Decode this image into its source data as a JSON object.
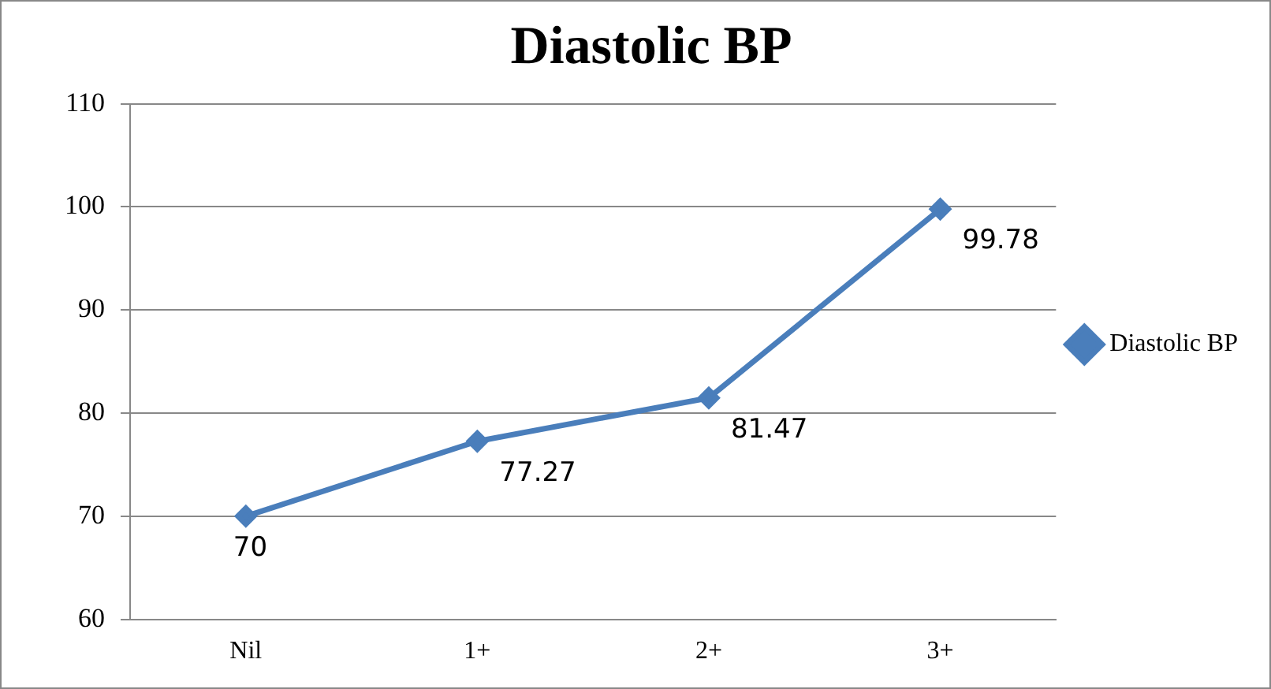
{
  "chart_data": {
    "type": "line",
    "title": "Diastolic BP",
    "categories": [
      "Nil",
      "1+",
      "2+",
      "3+"
    ],
    "series": [
      {
        "name": "Diastolic BP",
        "color": "#4a7ebb",
        "values": [
          70,
          77.27,
          81.47,
          99.78
        ]
      }
    ],
    "ylim": [
      60,
      110
    ],
    "yticks": [
      60,
      70,
      80,
      90,
      100,
      110
    ],
    "grid": "y",
    "legend": "right",
    "marker": "diamond",
    "line_style": "solid",
    "data_labels": true
  }
}
